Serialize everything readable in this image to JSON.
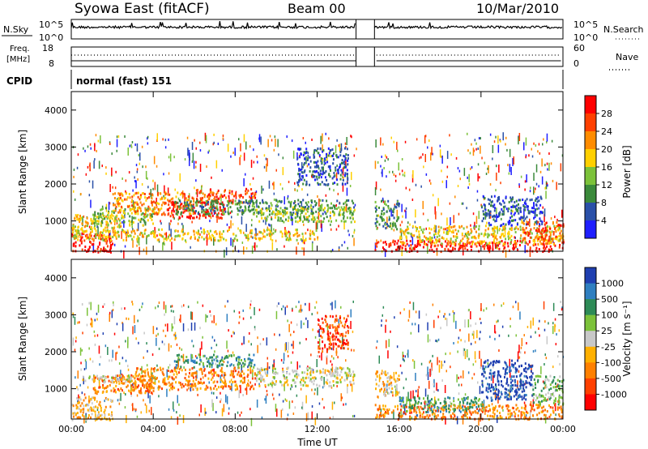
{
  "header": {
    "station": "Syowa East (fitACF)",
    "beam": "Beam 00",
    "date": "10/Mar/2010"
  },
  "top_panels": {
    "nsky_label": "N.Sky",
    "nsky_ticks": [
      "10^5",
      "10^0"
    ],
    "nsearch_label": "N.Search",
    "nsearch_ticks": [
      "10^5",
      "10^0"
    ],
    "freq_label": "Freq.",
    "freq_unit": "[MHz]",
    "freq_ticks": [
      "18",
      "8"
    ],
    "nave_label": "Nave",
    "nave_ticks": [
      "60",
      "0"
    ],
    "cpid_label": "CPID",
    "cpid_value": "normal (fast) 151",
    "data_gap_utc": [
      13.9,
      14.8
    ]
  },
  "chart_data": [
    {
      "type": "heatmap",
      "name": "Power",
      "ylabel": "Slant Range [km]",
      "ylim": [
        180,
        4500
      ],
      "yticks": [
        "1000",
        "2000",
        "3000",
        "4000"
      ],
      "xlim": [
        0,
        24
      ],
      "xticks": [
        "00:00",
        "04:00",
        "08:00",
        "12:00",
        "16:00",
        "20:00",
        "00:00"
      ],
      "colorbar": {
        "label": "Power [dB]",
        "ticks": [
          "4",
          "8",
          "12",
          "16",
          "20",
          "24",
          "28"
        ],
        "colors": [
          "#1f1fff",
          "#2a50a8",
          "#3b8a3b",
          "#7cc23a",
          "#ffd000",
          "#ff8c00",
          "#ff4000",
          "#ff0000"
        ]
      },
      "regions": [
        {
          "t": [
            0,
            2
          ],
          "r": [
            180,
            700
          ],
          "level": 7
        },
        {
          "t": [
            0,
            2.5
          ],
          "r": [
            700,
            1200
          ],
          "level": 4
        },
        {
          "t": [
            1,
            4
          ],
          "r": [
            900,
            1400
          ],
          "level": 3
        },
        {
          "t": [
            2,
            6
          ],
          "r": [
            1200,
            1800
          ],
          "level": 5
        },
        {
          "t": [
            4.5,
            7.5
          ],
          "r": [
            1100,
            1550
          ],
          "level": 7
        },
        {
          "t": [
            6,
            9
          ],
          "r": [
            1500,
            1900
          ],
          "level": 6
        },
        {
          "t": [
            5,
            13.8
          ],
          "r": [
            1200,
            1600
          ],
          "level": 2
        },
        {
          "t": [
            9,
            13.8
          ],
          "r": [
            1000,
            1400
          ],
          "level": 3
        },
        {
          "t": [
            11,
            13.5
          ],
          "r": [
            2000,
            3000
          ],
          "level": 1
        },
        {
          "t": [
            0,
            12
          ],
          "r": [
            500,
            800
          ],
          "level": 4
        },
        {
          "t": [
            14.8,
            24
          ],
          "r": [
            200,
            500
          ],
          "level": 7
        },
        {
          "t": [
            16,
            24
          ],
          "r": [
            400,
            900
          ],
          "level": 4
        },
        {
          "t": [
            14.8,
            16
          ],
          "r": [
            800,
            1600
          ],
          "level": 2
        },
        {
          "t": [
            20,
            23
          ],
          "r": [
            900,
            1700
          ],
          "level": 1
        },
        {
          "t": [
            22,
            24
          ],
          "r": [
            500,
            1000
          ],
          "level": 6
        }
      ]
    },
    {
      "type": "heatmap",
      "name": "Velocity",
      "ylabel": "Slant Range [km]",
      "ylim": [
        180,
        4500
      ],
      "yticks": [
        "1000",
        "2000",
        "3000",
        "4000"
      ],
      "xlim": [
        0,
        24
      ],
      "xlabel": "Time UT",
      "xticks": [
        "00:00",
        "04:00",
        "08:00",
        "12:00",
        "16:00",
        "20:00",
        "00:00"
      ],
      "colorbar": {
        "label": "Velocity [m s⁻¹]",
        "ticks": [
          "1000",
          "500",
          "100",
          "25",
          "-25",
          "-100",
          "-500",
          "-1000"
        ],
        "colors": [
          "#1f3fb0",
          "#2f7fc0",
          "#2e8b57",
          "#7cc23a",
          "#c8c8c8",
          "#ffb000",
          "#ff8000",
          "#ff4000",
          "#ff0000"
        ]
      },
      "regions": [
        {
          "t": [
            0,
            2
          ],
          "r": [
            180,
            800
          ],
          "level": 5
        },
        {
          "t": [
            1,
            4
          ],
          "r": [
            900,
            1400
          ],
          "level": 6
        },
        {
          "t": [
            3,
            9
          ],
          "r": [
            1000,
            1600
          ],
          "level": 6
        },
        {
          "t": [
            5,
            9
          ],
          "r": [
            1600,
            1950
          ],
          "level": 2
        },
        {
          "t": [
            0.5,
            3
          ],
          "r": [
            1200,
            1400
          ],
          "level": 4
        },
        {
          "t": [
            9,
            13.8
          ],
          "r": [
            1100,
            1600
          ],
          "level": 4
        },
        {
          "t": [
            12,
            13.5
          ],
          "r": [
            2000,
            3000
          ],
          "level": 7
        },
        {
          "t": [
            14.8,
            24
          ],
          "r": [
            200,
            600
          ],
          "level": 6
        },
        {
          "t": [
            14.8,
            16
          ],
          "r": [
            800,
            1500
          ],
          "level": 5
        },
        {
          "t": [
            20,
            22.5
          ],
          "r": [
            700,
            1800
          ],
          "level": 0
        },
        {
          "t": [
            16,
            20
          ],
          "r": [
            400,
            800
          ],
          "level": 2
        },
        {
          "t": [
            22.5,
            24
          ],
          "r": [
            600,
            1400
          ],
          "level": 3
        }
      ]
    }
  ]
}
